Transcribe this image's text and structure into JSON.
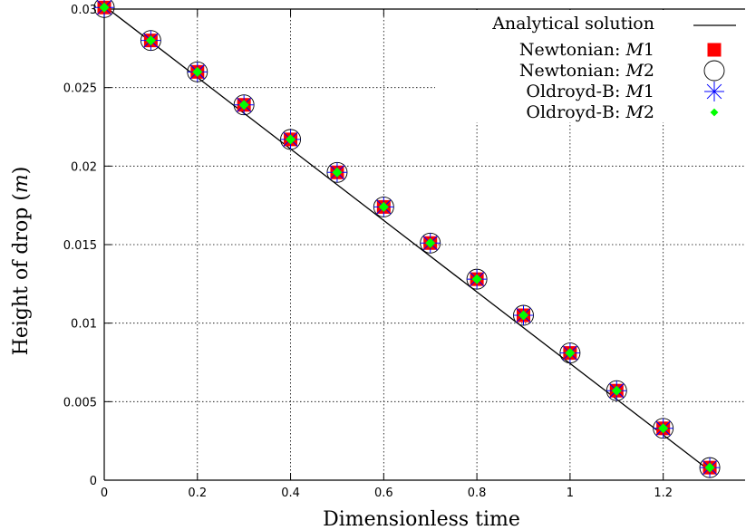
{
  "chart_data": {
    "type": "scatter",
    "xlabel": "Dimensionless time",
    "ylabel": "Height of drop (m)",
    "xlim": [
      0,
      1.3
    ],
    "ylim": [
      0,
      0.03
    ],
    "x_ticks": [
      "0",
      "0.2",
      "0.4",
      "0.6",
      "0.8",
      "1",
      "1.2"
    ],
    "y_ticks": [
      "0",
      "0.005",
      "0.01",
      "0.015",
      "0.02",
      "0.025",
      "0.03"
    ],
    "grid": true,
    "legend_position": "top-right",
    "line": {
      "name": "Analytical solution",
      "color": "#000000",
      "x": [
        0,
        1.3
      ],
      "y": [
        0.0302,
        0.0006
      ]
    },
    "x": [
      0,
      0.1,
      0.2,
      0.3,
      0.4,
      0.5,
      0.6,
      0.7,
      0.8,
      0.9,
      1.0,
      1.1,
      1.2,
      1.3
    ],
    "series": [
      {
        "name_prefix": "Newtonian:",
        "name_math": "M",
        "name_suffix": "1",
        "marker": "square",
        "color": "#ff0000",
        "values": [
          0.0301,
          0.028,
          0.026,
          0.0239,
          0.0217,
          0.0196,
          0.0174,
          0.0151,
          0.0128,
          0.0105,
          0.0081,
          0.0057,
          0.0033,
          0.0008
        ]
      },
      {
        "name_prefix": "Newtonian:",
        "name_math": "M",
        "name_suffix": "2",
        "marker": "circle",
        "color": "#000000",
        "values": [
          0.0301,
          0.028,
          0.026,
          0.0239,
          0.0217,
          0.0196,
          0.0174,
          0.0151,
          0.0128,
          0.0105,
          0.0081,
          0.0057,
          0.0033,
          0.0008
        ]
      },
      {
        "name_prefix": "Oldroyd-B:",
        "name_math": "M",
        "name_suffix": "1",
        "marker": "star",
        "color": "#0000ff",
        "values": [
          0.0301,
          0.028,
          0.026,
          0.0239,
          0.0217,
          0.0196,
          0.0174,
          0.0151,
          0.0128,
          0.0105,
          0.0081,
          0.0057,
          0.0033,
          0.0008
        ]
      },
      {
        "name_prefix": "Oldroyd-B:",
        "name_math": "M",
        "name_suffix": "2",
        "marker": "diamond",
        "color": "#00ff00",
        "values": [
          0.0301,
          0.028,
          0.026,
          0.0239,
          0.0217,
          0.0196,
          0.0174,
          0.0151,
          0.0128,
          0.0105,
          0.0081,
          0.0057,
          0.0033,
          0.0008
        ]
      }
    ]
  }
}
